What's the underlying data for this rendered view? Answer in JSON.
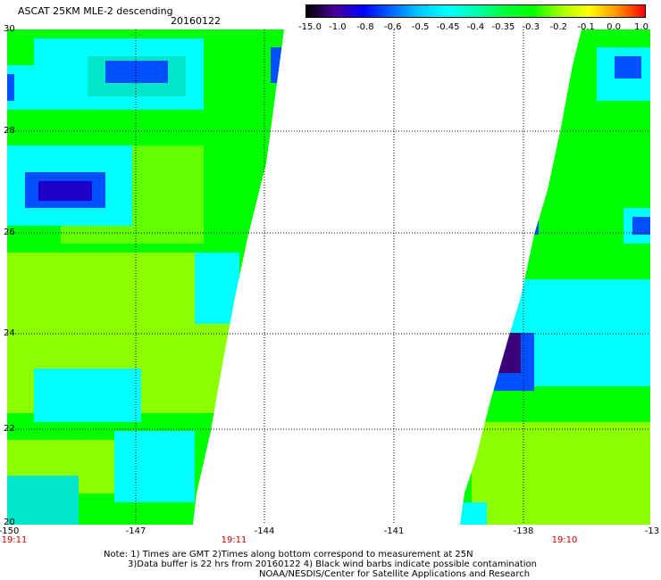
{
  "header": {
    "title": "ASCAT 25KM MLE-2 descending",
    "date": "20160122"
  },
  "colorbar": {
    "ticks": [
      "-15.0",
      "-1.0",
      "-0.8",
      "-0.6",
      "-0.5",
      "-0.45",
      "-0.4",
      "-0.35",
      "-0.3",
      "-0.2",
      "-0.1",
      "0.0",
      "1.0"
    ],
    "colors": [
      "#000000",
      "#4b0096",
      "#0000ff",
      "#0064ff",
      "#00c8ff",
      "#00ffff",
      "#00ffb4",
      "#00ff3c",
      "#00ff00",
      "#a0ff00",
      "#ffff00",
      "#ff9600",
      "#ff0000"
    ]
  },
  "map": {
    "lat_labels": [
      "30",
      "28",
      "26",
      "24",
      "22",
      "20"
    ],
    "lon_labels": [
      "-150",
      "-147",
      "-144",
      "-141",
      "-138",
      "-13"
    ],
    "lat_range": [
      20,
      30
    ],
    "lon_range": [
      -150,
      -135
    ],
    "time_labels": [
      "19:11",
      "19:11",
      "19:10"
    ],
    "swath_colors": {
      "green": "#00ff00",
      "lime": "#8cff00",
      "cyan": "#00ffff",
      "aqua": "#00e6c8",
      "blue": "#0050ff",
      "navy": "#1e00c8",
      "purple": "#3c0078"
    }
  },
  "notes": {
    "line1": "Note: 1) Times are GMT 2)Times along bottom correspond to measurement at 25N",
    "line2": "3)Data buffer is 22 hrs from 20160122 4) Black wind barbs indicate possible contamination",
    "line3": "NOAA/NESDIS/Center for Satellite Applications and Research"
  }
}
